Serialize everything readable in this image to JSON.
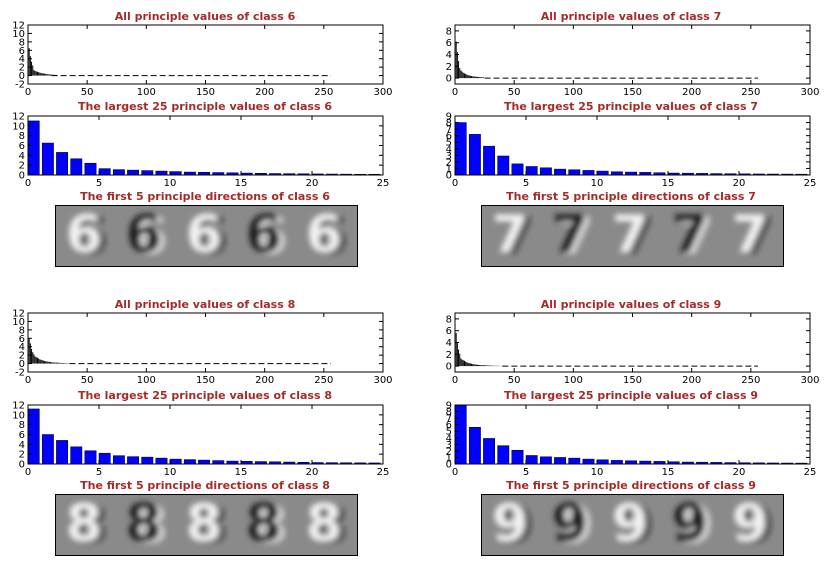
{
  "colors": {
    "title": "#a52a2a",
    "bar": "#0000ff",
    "values_line": "#000000"
  },
  "chart_data": [
    {
      "type": "line",
      "title": "All principle values of class 6",
      "xlim": [
        0,
        300
      ],
      "ylim": [
        -2,
        12
      ],
      "xticks": [
        0,
        50,
        100,
        150,
        200,
        250,
        300
      ],
      "yticks": [
        -2,
        0,
        2,
        4,
        6,
        8,
        10,
        12
      ],
      "n": 256,
      "values_head": [
        11.0,
        6.5,
        4.6,
        3.3,
        2.4,
        1.3,
        1.1,
        1.0,
        0.9,
        0.8,
        0.7,
        0.6,
        0.55,
        0.5,
        0.45,
        0.4,
        0.35,
        0.3,
        0.28,
        0.25,
        0.22,
        0.2,
        0.18,
        0.16,
        0.15
      ],
      "tail_end": 20
    },
    {
      "type": "bar",
      "title": "The largest 25 principle values of class 6",
      "xlim": [
        0,
        25
      ],
      "ylim": [
        0,
        12
      ],
      "xticks": [
        0,
        5,
        10,
        15,
        20,
        25
      ],
      "yticks": [
        0,
        2,
        4,
        6,
        8,
        10,
        12
      ],
      "values": [
        11.0,
        6.5,
        4.6,
        3.3,
        2.4,
        1.3,
        1.1,
        1.0,
        0.9,
        0.8,
        0.7,
        0.6,
        0.55,
        0.5,
        0.45,
        0.4,
        0.35,
        0.3,
        0.28,
        0.25,
        0.22,
        0.2,
        0.18,
        0.16,
        0.15
      ]
    },
    {
      "type": "line",
      "title": "All principle values of class 7",
      "xlim": [
        0,
        300
      ],
      "ylim": [
        -1,
        9
      ],
      "xticks": [
        0,
        50,
        100,
        150,
        200,
        250,
        300
      ],
      "yticks": [
        0,
        2,
        4,
        6,
        8
      ],
      "n": 256,
      "values_head": [
        8.0,
        6.2,
        4.4,
        2.9,
        1.7,
        1.3,
        1.1,
        0.9,
        0.8,
        0.7,
        0.6,
        0.5,
        0.45,
        0.4,
        0.35,
        0.3,
        0.28,
        0.25,
        0.22,
        0.2,
        0.18,
        0.16,
        0.15,
        0.14,
        0.13
      ],
      "tail_end": 25
    },
    {
      "type": "bar",
      "title": "The largest 25 principle values of class 7",
      "xlim": [
        0,
        25
      ],
      "ylim": [
        0,
        9
      ],
      "xticks": [
        0,
        5,
        10,
        15,
        20,
        25
      ],
      "yticks": [
        0,
        1,
        2,
        3,
        4,
        5,
        6,
        7,
        8,
        9
      ],
      "values": [
        8.0,
        6.2,
        4.4,
        2.9,
        1.7,
        1.3,
        1.1,
        0.9,
        0.8,
        0.7,
        0.6,
        0.5,
        0.45,
        0.4,
        0.35,
        0.3,
        0.28,
        0.25,
        0.22,
        0.2,
        0.18,
        0.16,
        0.15,
        0.14,
        0.13
      ]
    },
    {
      "type": "line",
      "title": "All principle values of class 8",
      "xlim": [
        0,
        300
      ],
      "ylim": [
        -2,
        12
      ],
      "xticks": [
        0,
        50,
        100,
        150,
        200,
        250,
        300
      ],
      "yticks": [
        -2,
        0,
        2,
        4,
        6,
        8,
        10,
        12
      ],
      "n": 256,
      "values_head": [
        11.2,
        6.0,
        4.8,
        3.5,
        2.7,
        2.2,
        1.7,
        1.5,
        1.4,
        1.2,
        1.0,
        0.9,
        0.8,
        0.7,
        0.6,
        0.55,
        0.5,
        0.45,
        0.4,
        0.35,
        0.3,
        0.28,
        0.26,
        0.24,
        0.22
      ],
      "tail_end": 35
    },
    {
      "type": "bar",
      "title": "The largest 25 principle values of class 8",
      "xlim": [
        0,
        25
      ],
      "ylim": [
        0,
        12
      ],
      "xticks": [
        0,
        5,
        10,
        15,
        20,
        25
      ],
      "yticks": [
        0,
        2,
        4,
        6,
        8,
        10,
        12
      ],
      "values": [
        11.2,
        6.0,
        4.8,
        3.5,
        2.7,
        2.2,
        1.7,
        1.5,
        1.4,
        1.2,
        1.0,
        0.9,
        0.8,
        0.7,
        0.6,
        0.55,
        0.5,
        0.45,
        0.4,
        0.35,
        0.3,
        0.28,
        0.26,
        0.24,
        0.22
      ]
    },
    {
      "type": "line",
      "title": "All principle values of class 9",
      "xlim": [
        0,
        300
      ],
      "ylim": [
        -1,
        9
      ],
      "xticks": [
        0,
        50,
        100,
        150,
        200,
        250,
        300
      ],
      "yticks": [
        0,
        2,
        4,
        6,
        8
      ],
      "n": 256,
      "values_head": [
        9.0,
        5.6,
        3.9,
        2.8,
        2.1,
        1.3,
        1.1,
        1.0,
        0.9,
        0.75,
        0.65,
        0.55,
        0.5,
        0.45,
        0.4,
        0.35,
        0.3,
        0.28,
        0.25,
        0.22,
        0.2,
        0.18,
        0.16,
        0.15,
        0.14
      ],
      "tail_end": 40
    },
    {
      "type": "bar",
      "title": "The largest 25 principle values of class 9",
      "xlim": [
        0,
        25
      ],
      "ylim": [
        0,
        9
      ],
      "xticks": [
        0,
        5,
        10,
        15,
        20,
        25
      ],
      "yticks": [
        0,
        1,
        2,
        3,
        4,
        5,
        6,
        7,
        8,
        9
      ],
      "values": [
        9.0,
        5.6,
        3.9,
        2.8,
        2.1,
        1.3,
        1.1,
        1.0,
        0.9,
        0.75,
        0.65,
        0.55,
        0.5,
        0.45,
        0.4,
        0.35,
        0.3,
        0.28,
        0.25,
        0.22,
        0.2,
        0.18,
        0.16,
        0.15,
        0.14
      ]
    }
  ],
  "images": [
    {
      "title": "The first 5 principle directions of class 6",
      "digit": "6"
    },
    {
      "title": "The first 5 principle directions of class 7",
      "digit": "7"
    },
    {
      "title": "The first 5 principle directions of class 8",
      "digit": "8"
    },
    {
      "title": "The first 5 principle directions of class 9",
      "digit": "9"
    }
  ]
}
